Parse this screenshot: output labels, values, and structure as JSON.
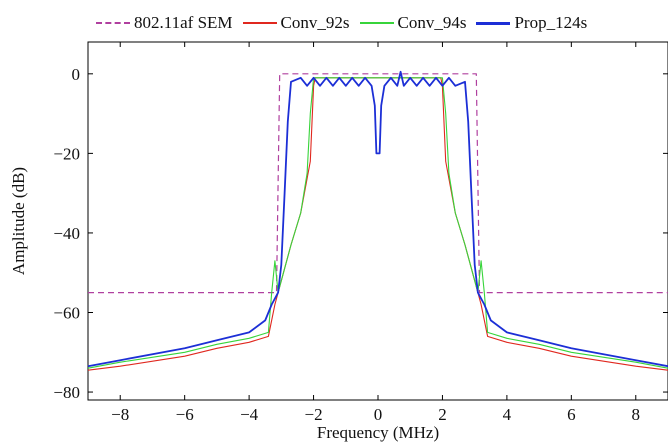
{
  "chart_data": {
    "type": "line",
    "xlabel": "Frequency (MHz)",
    "ylabel": "Amplitude (dB)",
    "xlim": [
      -9,
      9
    ],
    "ylim": [
      -82,
      8
    ],
    "xticks": [
      -8,
      -6,
      -4,
      -2,
      0,
      2,
      4,
      6,
      8
    ],
    "yticks": [
      0,
      -20,
      -40,
      -60,
      -80
    ],
    "legend_position": "top",
    "grid": false,
    "series": [
      {
        "name": "802.11af SEM",
        "color": "#b0409f",
        "dash": true,
        "points": [
          [
            -9,
            -55
          ],
          [
            -3.15,
            -55
          ],
          [
            -3.05,
            0
          ],
          [
            3.05,
            0
          ],
          [
            3.15,
            -55
          ],
          [
            9,
            -55
          ]
        ]
      },
      {
        "name": "Conv_92s",
        "color": "#e0281f",
        "dash": false,
        "points": [
          [
            -9,
            -74.5
          ],
          [
            -8,
            -73.5
          ],
          [
            -6,
            -71
          ],
          [
            -5,
            -69
          ],
          [
            -4,
            -67.5
          ],
          [
            -3.4,
            -66
          ],
          [
            -3.2,
            -58
          ],
          [
            -3.0,
            -52
          ],
          [
            -2.7,
            -43
          ],
          [
            -2.4,
            -35
          ],
          [
            -2.1,
            -22
          ],
          [
            -2.0,
            -3
          ],
          [
            -1.95,
            -1
          ],
          [
            1.95,
            -1
          ],
          [
            2.0,
            -3
          ],
          [
            2.1,
            -22
          ],
          [
            2.4,
            -35
          ],
          [
            2.7,
            -43
          ],
          [
            3.0,
            -52
          ],
          [
            3.2,
            -58
          ],
          [
            3.4,
            -66
          ],
          [
            4,
            -67.5
          ],
          [
            5,
            -69
          ],
          [
            6,
            -71
          ],
          [
            8,
            -73.5
          ],
          [
            9,
            -74.5
          ]
        ]
      },
      {
        "name": "Conv_94s",
        "color": "#37d43a",
        "dash": false,
        "points": [
          [
            -9,
            -74
          ],
          [
            -8,
            -72.5
          ],
          [
            -6,
            -70
          ],
          [
            -5,
            -68
          ],
          [
            -4,
            -66.5
          ],
          [
            -3.4,
            -65
          ],
          [
            -3.3,
            -55
          ],
          [
            -3.2,
            -47
          ],
          [
            -3.1,
            -55
          ],
          [
            -3.0,
            -52
          ],
          [
            -2.7,
            -43
          ],
          [
            -2.4,
            -35
          ],
          [
            -2.2,
            -25
          ],
          [
            -2.1,
            -10
          ],
          [
            -2.0,
            -1
          ],
          [
            2.0,
            -1
          ],
          [
            2.1,
            -10
          ],
          [
            2.2,
            -25
          ],
          [
            2.4,
            -35
          ],
          [
            2.7,
            -43
          ],
          [
            3.0,
            -52
          ],
          [
            3.1,
            -55
          ],
          [
            3.2,
            -47
          ],
          [
            3.3,
            -55
          ],
          [
            3.4,
            -65
          ],
          [
            4,
            -66.5
          ],
          [
            5,
            -68
          ],
          [
            6,
            -70
          ],
          [
            8,
            -72.5
          ],
          [
            9,
            -74
          ]
        ]
      },
      {
        "name": "Prop_124s",
        "color": "#1c2fd6",
        "dash": false,
        "points": [
          [
            -9,
            -73.5
          ],
          [
            -8,
            -72
          ],
          [
            -6,
            -69
          ],
          [
            -5,
            -67
          ],
          [
            -4,
            -65
          ],
          [
            -3.5,
            -62
          ],
          [
            -3.3,
            -58
          ],
          [
            -3.1,
            -55
          ],
          [
            -3.0,
            -48
          ],
          [
            -2.9,
            -30
          ],
          [
            -2.8,
            -12
          ],
          [
            -2.7,
            -2
          ],
          [
            -2.4,
            -1
          ],
          [
            -2.2,
            -3
          ],
          [
            -2.0,
            -1
          ],
          [
            -1.8,
            -3
          ],
          [
            -1.6,
            -1
          ],
          [
            -1.4,
            -3
          ],
          [
            -1.2,
            -1
          ],
          [
            -1.0,
            -3
          ],
          [
            -0.8,
            -1
          ],
          [
            -0.6,
            -3
          ],
          [
            -0.4,
            -1
          ],
          [
            -0.2,
            -3
          ],
          [
            -0.1,
            -8
          ],
          [
            -0.05,
            -20
          ],
          [
            0,
            -20
          ],
          [
            0.05,
            -20
          ],
          [
            0.1,
            -8
          ],
          [
            0.2,
            -3
          ],
          [
            0.4,
            -1
          ],
          [
            0.6,
            -3
          ],
          [
            0.7,
            0.5
          ],
          [
            0.8,
            -3
          ],
          [
            1.0,
            -1
          ],
          [
            1.2,
            -3
          ],
          [
            1.4,
            -1
          ],
          [
            1.6,
            -3
          ],
          [
            1.8,
            -1
          ],
          [
            2.0,
            -3
          ],
          [
            2.2,
            -1
          ],
          [
            2.4,
            -3
          ],
          [
            2.7,
            -2
          ],
          [
            2.8,
            -12
          ],
          [
            2.9,
            -30
          ],
          [
            3.0,
            -48
          ],
          [
            3.1,
            -55
          ],
          [
            3.3,
            -58
          ],
          [
            3.5,
            -62
          ],
          [
            4,
            -65
          ],
          [
            5,
            -67
          ],
          [
            6,
            -69
          ],
          [
            8,
            -72
          ],
          [
            9,
            -73.5
          ]
        ]
      }
    ]
  }
}
